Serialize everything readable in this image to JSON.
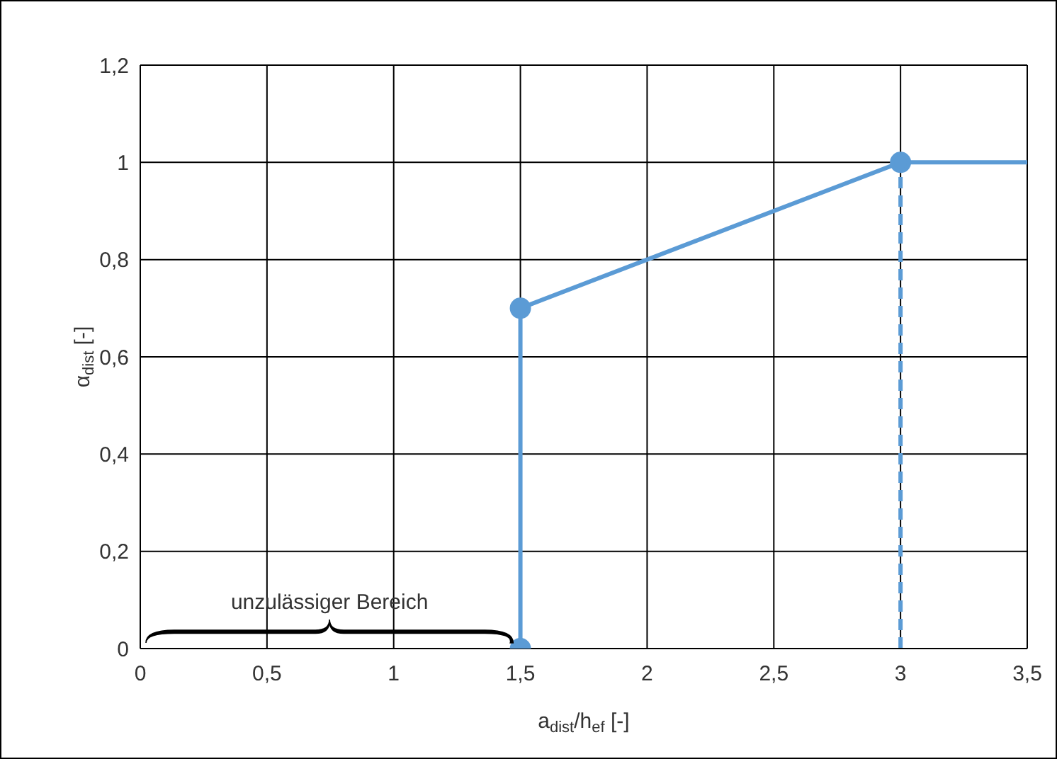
{
  "chart_data": {
    "type": "line",
    "xlabel": "a$_{dist}$/h$_{ef}$ [-]",
    "ylabel": "α$_{dist}$ [-]",
    "xlim": [
      0,
      3.5
    ],
    "xticks": [
      0,
      {
        "value": 0.5,
        "label": "0,5"
      },
      1,
      {
        "value": 1.5,
        "label": "1,5"
      },
      2,
      {
        "value": 2.5,
        "label": "2,5"
      },
      3,
      {
        "value": 3.5,
        "label": "3,5"
      }
    ],
    "ylim": [
      0,
      1.2
    ],
    "yticks": [
      0,
      {
        "value": 0.2,
        "label": "0,2"
      },
      {
        "value": 0.4,
        "label": "0,4"
      },
      {
        "value": 0.6,
        "label": "0,6"
      },
      {
        "value": 0.8,
        "label": "0,8"
      },
      1,
      {
        "value": 1.2,
        "label": "1,2"
      }
    ],
    "grid": true,
    "series": [
      {
        "color": "#5b9bd5",
        "x": [
          1.5,
          1.5,
          3
        ],
        "values": [
          0,
          0.7,
          1
        ],
        "marker": "circle",
        "line_style": "solid"
      },
      {
        "color": "#5b9bd5",
        "x": [
          3,
          3.5
        ],
        "values": [
          1,
          1
        ],
        "marker": "none",
        "line_style": "solid"
      },
      {
        "color": "#5b9bd5",
        "x": [
          3,
          3
        ],
        "values": [
          0,
          1
        ],
        "marker": "none",
        "line_style": "dashed"
      }
    ],
    "annotations": [
      "unzulässiger Bereich"
    ]
  }
}
